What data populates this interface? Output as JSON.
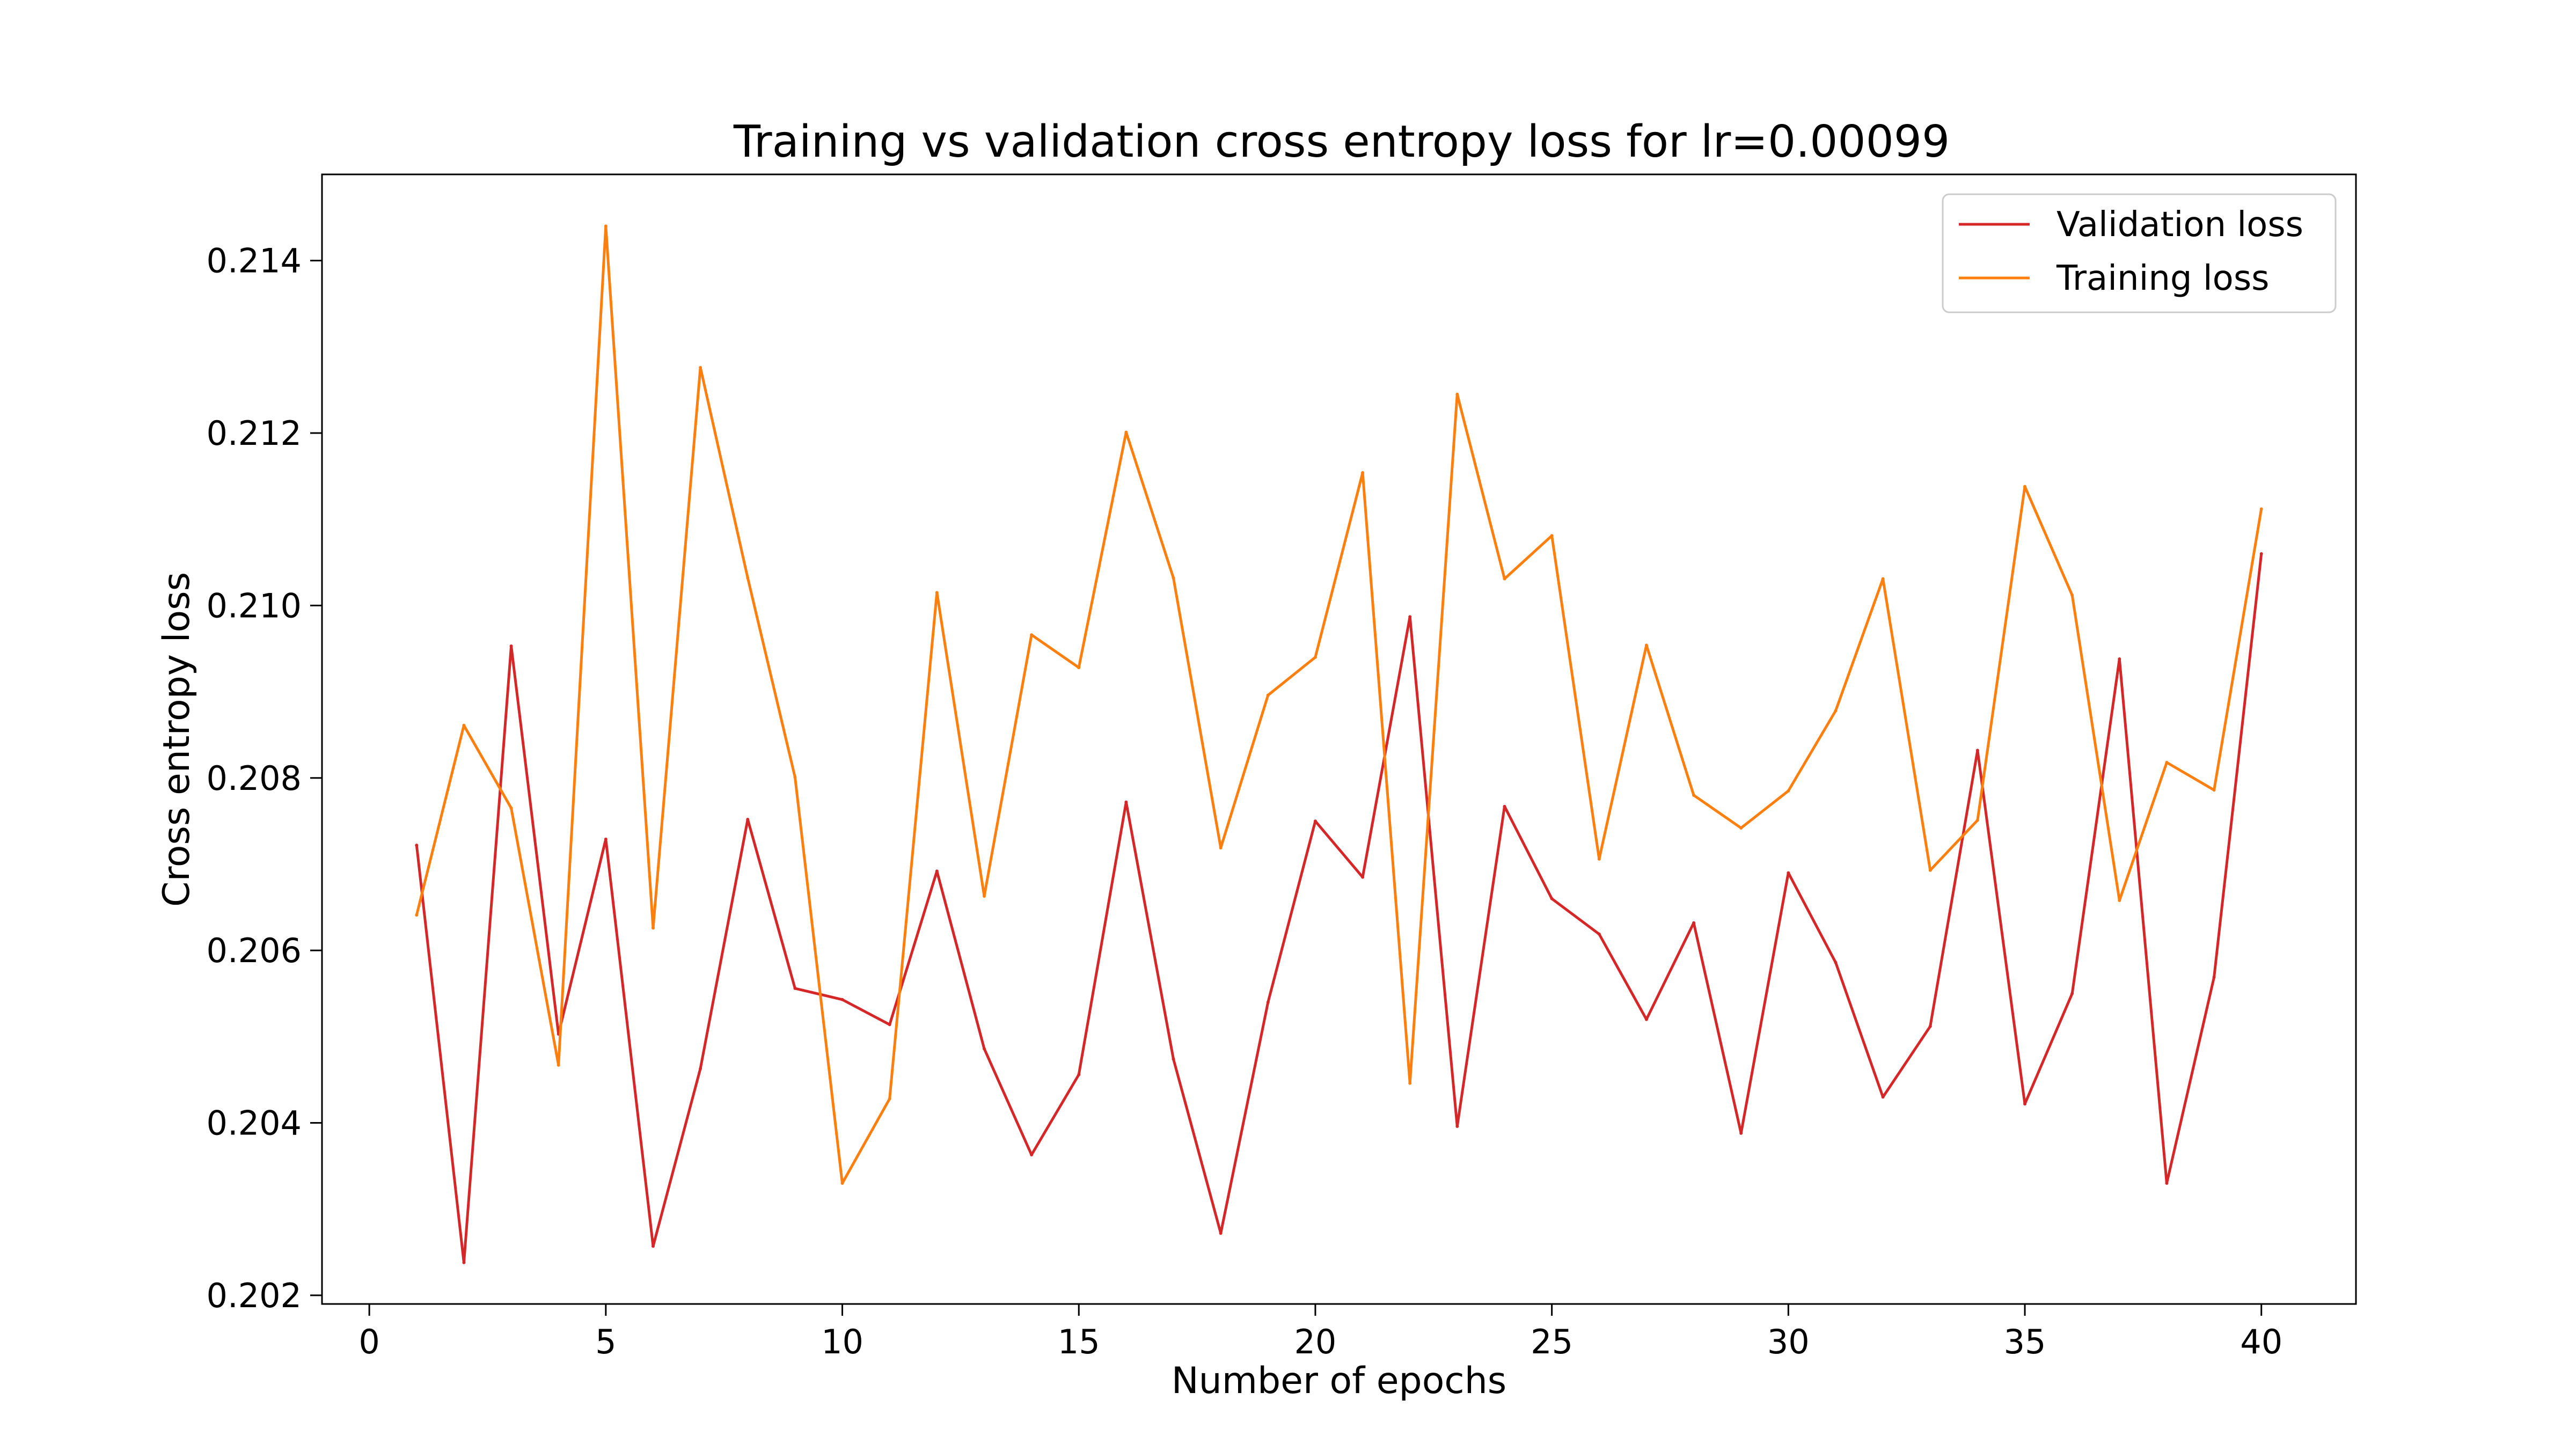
{
  "chart_data": {
    "type": "line",
    "title": "Training vs validation cross entropy loss for lr=0.00099",
    "xlabel": "Number of epochs",
    "ylabel": "Cross entropy loss",
    "xlim": [
      -1,
      42
    ],
    "ylim": [
      0.2019,
      0.215
    ],
    "xticks": [
      0,
      5,
      10,
      15,
      20,
      25,
      30,
      35,
      40
    ],
    "xtick_labels": [
      "0",
      "5",
      "10",
      "15",
      "20",
      "25",
      "30",
      "35",
      "40"
    ],
    "yticks": [
      0.202,
      0.204,
      0.206,
      0.208,
      0.21,
      0.212,
      0.214
    ],
    "ytick_labels": [
      "0.202",
      "0.204",
      "0.206",
      "0.208",
      "0.210",
      "0.212",
      "0.214"
    ],
    "grid": false,
    "legend_position": "top-right",
    "x": [
      1,
      2,
      3,
      4,
      5,
      6,
      7,
      8,
      9,
      10,
      11,
      12,
      13,
      14,
      15,
      16,
      17,
      18,
      19,
      20,
      21,
      22,
      23,
      24,
      25,
      26,
      27,
      28,
      29,
      30,
      31,
      32,
      33,
      34,
      35,
      36,
      37,
      38,
      39,
      40
    ],
    "series": [
      {
        "name": "Validation loss",
        "color": "#d62728",
        "values": [
          0.20722,
          0.20238,
          0.20953,
          0.20503,
          0.20729,
          0.20257,
          0.20463,
          0.20752,
          0.20556,
          0.20543,
          0.20514,
          0.20692,
          0.20486,
          0.20363,
          0.20456,
          0.20772,
          0.20474,
          0.20272,
          0.2054,
          0.2075,
          0.20685,
          0.20987,
          0.20396,
          0.20767,
          0.2066,
          0.20619,
          0.2052,
          0.20632,
          0.20388,
          0.2069,
          0.20586,
          0.2043,
          0.20512,
          0.20832,
          0.20422,
          0.2055,
          0.20938,
          0.2033,
          0.20569,
          0.2106
        ]
      },
      {
        "name": "Training loss",
        "color": "#ff7f0e",
        "values": [
          0.20641,
          0.20861,
          0.20765,
          0.20467,
          0.2144,
          0.20626,
          0.21276,
          0.21032,
          0.20801,
          0.2033,
          0.20428,
          0.21015,
          0.20663,
          0.20966,
          0.20928,
          0.21201,
          0.21032,
          0.20719,
          0.20896,
          0.2094,
          0.21154,
          0.20446,
          0.21245,
          0.21031,
          0.21081,
          0.20706,
          0.20954,
          0.2078,
          0.20742,
          0.20785,
          0.20878,
          0.21031,
          0.20693,
          0.20751,
          0.21138,
          0.21012,
          0.20658,
          0.20818,
          0.20786,
          0.21112
        ]
      }
    ]
  }
}
